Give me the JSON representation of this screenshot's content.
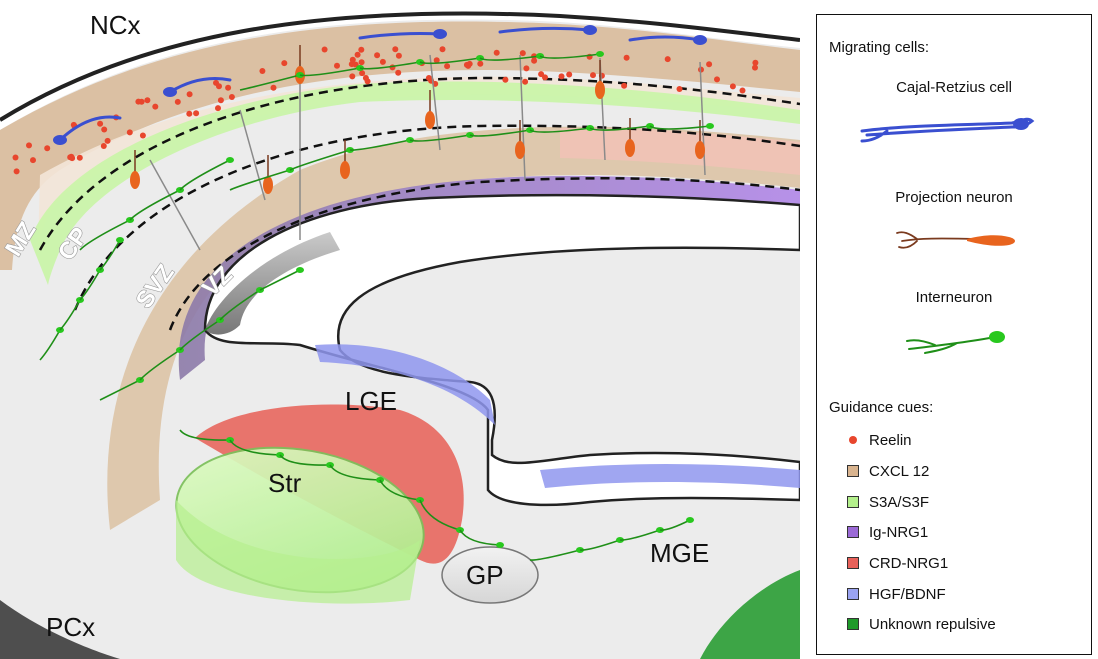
{
  "regions": {
    "ncx": "NCx",
    "pcx": "PCx",
    "lge": "LGE",
    "mge": "MGE",
    "str": "Str",
    "gp": "GP"
  },
  "zones": {
    "mz": "MZ",
    "cp": "CP",
    "svz": "SVZ",
    "vz": "VZ"
  },
  "legend": {
    "migrating_heading": "Migrating cells:",
    "cells": [
      {
        "label": "Cajal-Retzius cell",
        "color": "#3a4fd0"
      },
      {
        "label": "Projection neuron",
        "color": "#e8641e"
      },
      {
        "label": "Interneuron",
        "color": "#28c81e"
      }
    ],
    "cues_heading": "Guidance cues:",
    "cues": [
      {
        "label": "Reelin",
        "color": "#e8462d",
        "kind": "dot"
      },
      {
        "label": "CXCL 12",
        "color": "#d9b48f",
        "kind": "swatch"
      },
      {
        "label": "S3A/S3F",
        "color": "#b4f08c",
        "kind": "swatch"
      },
      {
        "label": "Ig-NRG1",
        "color": "#9b6ad6",
        "kind": "swatch"
      },
      {
        "label": "CRD-NRG1",
        "color": "#e8615a",
        "kind": "swatch"
      },
      {
        "label": "HGF/BDNF",
        "color": "#9aa3f0",
        "kind": "swatch"
      },
      {
        "label": "Unknown repulsive",
        "color": "#1f9a2a",
        "kind": "swatch"
      }
    ]
  }
}
